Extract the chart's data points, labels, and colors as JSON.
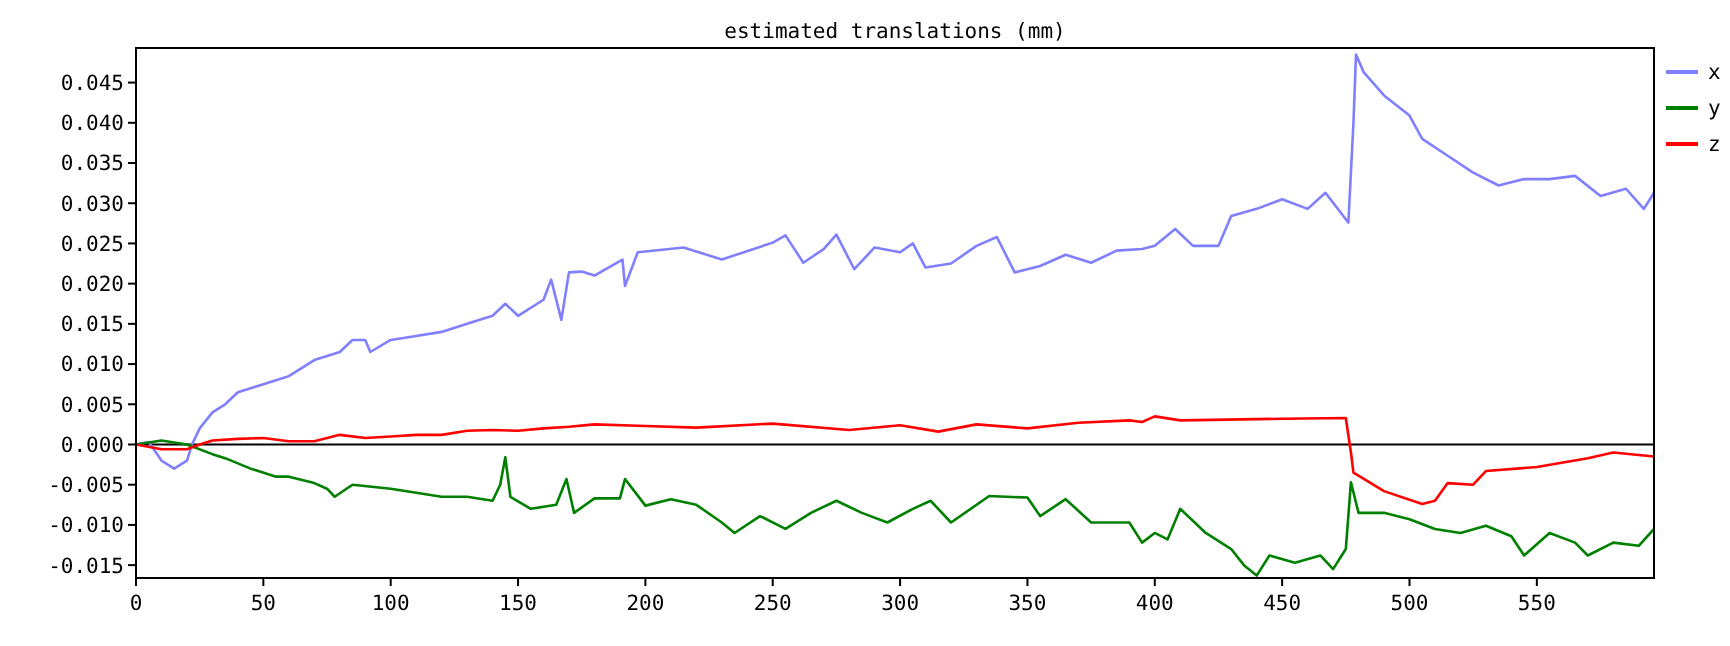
{
  "chart_data": {
    "type": "line",
    "title": "estimated translations (mm)",
    "xlim": [
      0,
      596
    ],
    "ylim": [
      -0.0166,
      0.0493
    ],
    "xticks": [
      0,
      50,
      100,
      150,
      200,
      250,
      300,
      350,
      400,
      450,
      500,
      550
    ],
    "yticks": [
      {
        "value": -0.015,
        "label": "-0.015"
      },
      {
        "value": -0.01,
        "label": "-0.010"
      },
      {
        "value": -0.005,
        "label": "-0.005"
      },
      {
        "value": 0,
        "label": "0.000"
      },
      {
        "value": 0.005,
        "label": "0.005"
      },
      {
        "value": 0.01,
        "label": "0.010"
      },
      {
        "value": 0.015,
        "label": "0.015"
      },
      {
        "value": 0.02,
        "label": "0.020"
      },
      {
        "value": 0.025,
        "label": "0.025"
      },
      {
        "value": 0.03,
        "label": "0.030"
      },
      {
        "value": 0.035,
        "label": "0.035"
      },
      {
        "value": 0.04,
        "label": "0.040"
      },
      {
        "value": 0.045,
        "label": "0.045"
      }
    ],
    "grid": false,
    "legend": "top right",
    "marker": "none",
    "line_style": "solid",
    "ref_lines": [
      {
        "axis": "y",
        "value": 0,
        "color": "#000000"
      }
    ],
    "series": [
      {
        "name": "x",
        "color": "#8080ff",
        "x": [
          0,
          5,
          10,
          15,
          20,
          22,
          25,
          30,
          35,
          40,
          45,
          50,
          55,
          60,
          65,
          70,
          75,
          80,
          85,
          90,
          92,
          100,
          110,
          120,
          130,
          140,
          145,
          150,
          160,
          163,
          165,
          167,
          170,
          175,
          180,
          191,
          192,
          197,
          200,
          215,
          230,
          250,
          255,
          262,
          270,
          275,
          282,
          290,
          300,
          305,
          310,
          320,
          330,
          338,
          345,
          355,
          365,
          375,
          385,
          395,
          400,
          408,
          415,
          425,
          430,
          440,
          450,
          460,
          467,
          475,
          476,
          478,
          479,
          482,
          490,
          500,
          505,
          515,
          525,
          535,
          545,
          555,
          565,
          575,
          585,
          592,
          596
        ],
        "values": [
          0,
          0.0003,
          -0.002,
          -0.003,
          -0.002,
          0,
          0.002,
          0.004,
          0.005,
          0.0065,
          0.007,
          0.0075,
          0.008,
          0.0085,
          0.0095,
          0.0105,
          0.011,
          0.0115,
          0.013,
          0.013,
          0.0115,
          0.013,
          0.0135,
          0.014,
          0.015,
          0.016,
          0.0175,
          0.016,
          0.018,
          0.0205,
          0.018,
          0.0155,
          0.0214,
          0.0215,
          0.021,
          0.023,
          0.0197,
          0.0239,
          0.024,
          0.0245,
          0.023,
          0.0251,
          0.026,
          0.0226,
          0.0243,
          0.0261,
          0.0218,
          0.0245,
          0.0239,
          0.025,
          0.022,
          0.0225,
          0.0247,
          0.0258,
          0.0214,
          0.0222,
          0.0236,
          0.0226,
          0.0241,
          0.0243,
          0.0247,
          0.0268,
          0.0247,
          0.0247,
          0.0284,
          0.0293,
          0.0305,
          0.0293,
          0.0313,
          0.028,
          0.0276,
          0.04,
          0.0485,
          0.0463,
          0.0434,
          0.0409,
          0.038,
          0.0359,
          0.0338,
          0.0322,
          0.033,
          0.033,
          0.0334,
          0.0309,
          0.0318,
          0.0293,
          0.0313
        ]
      },
      {
        "name": "y",
        "color": "#008000",
        "x": [
          0,
          10,
          20,
          30,
          35,
          45,
          55,
          60,
          70,
          75,
          78,
          85,
          100,
          110,
          120,
          130,
          140,
          143,
          145,
          147,
          155,
          165,
          169,
          172,
          180,
          190,
          192,
          200,
          210,
          220,
          230,
          235,
          245,
          255,
          265,
          275,
          285,
          295,
          305,
          312,
          320,
          335,
          350,
          355,
          365,
          375,
          390,
          395,
          400,
          405,
          410,
          420,
          430,
          435,
          440,
          445,
          455,
          465,
          470,
          475,
          477,
          480,
          490,
          500,
          510,
          520,
          530,
          540,
          545,
          555,
          565,
          570,
          580,
          590,
          596
        ],
        "values": [
          0,
          0.0005,
          0,
          -0.0012,
          -0.0017,
          -0.003,
          -0.004,
          -0.004,
          -0.0048,
          -0.0055,
          -0.0065,
          -0.005,
          -0.0055,
          -0.006,
          -0.0065,
          -0.0065,
          -0.007,
          -0.005,
          -0.0016,
          -0.0065,
          -0.008,
          -0.0075,
          -0.0043,
          -0.0085,
          -0.0067,
          -0.0067,
          -0.0043,
          -0.0076,
          -0.0068,
          -0.0075,
          -0.0097,
          -0.011,
          -0.0089,
          -0.0105,
          -0.0085,
          -0.007,
          -0.0085,
          -0.0097,
          -0.008,
          -0.007,
          -0.0097,
          -0.0064,
          -0.0066,
          -0.0089,
          -0.0068,
          -0.0097,
          -0.0097,
          -0.0122,
          -0.011,
          -0.0118,
          -0.008,
          -0.011,
          -0.013,
          -0.015,
          -0.0163,
          -0.0138,
          -0.0147,
          -0.0138,
          -0.0155,
          -0.013,
          -0.0047,
          -0.0085,
          -0.0085,
          -0.0093,
          -0.0105,
          -0.011,
          -0.0101,
          -0.0114,
          -0.0138,
          -0.011,
          -0.0122,
          -0.0138,
          -0.0122,
          -0.0126,
          -0.0105
        ]
      },
      {
        "name": "z",
        "color": "#ff0000",
        "x": [
          0,
          10,
          20,
          25,
          30,
          40,
          50,
          60,
          70,
          80,
          90,
          100,
          110,
          120,
          130,
          140,
          150,
          160,
          170,
          180,
          200,
          220,
          250,
          280,
          300,
          315,
          330,
          350,
          370,
          390,
          395,
          400,
          410,
          450,
          475,
          477,
          478,
          490,
          505,
          510,
          515,
          525,
          530,
          550,
          570,
          580,
          596
        ],
        "values": [
          0,
          -0.0006,
          -0.0006,
          0,
          0.0005,
          0.0007,
          0.0008,
          0.0004,
          0.0004,
          0.0012,
          0.0008,
          0.001,
          0.0012,
          0.0012,
          0.0017,
          0.0018,
          0.0017,
          0.002,
          0.0022,
          0.0025,
          0.0023,
          0.0021,
          0.0026,
          0.0018,
          0.0024,
          0.0016,
          0.0025,
          0.002,
          0.0027,
          0.003,
          0.0028,
          0.0035,
          0.003,
          0.0032,
          0.0033,
          -0.001,
          -0.0035,
          -0.0058,
          -0.0074,
          -0.007,
          -0.0048,
          -0.005,
          -0.0033,
          -0.0028,
          -0.0017,
          -0.001,
          -0.0015
        ]
      }
    ]
  }
}
